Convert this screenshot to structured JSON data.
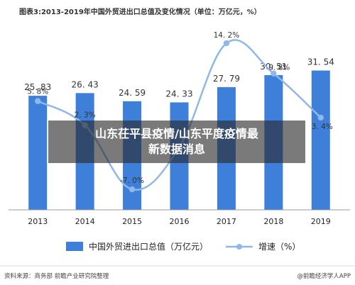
{
  "chart_data": {
    "type": "bar",
    "title": "图表3:2013-2019年中国外贸进出口总值及变化情况（单位：万亿元，%）",
    "categories": [
      "2013",
      "2014",
      "2015",
      "2016",
      "2017",
      "2018",
      "2019"
    ],
    "series": [
      {
        "name": "中国外贸进出口总值（万亿元）",
        "type": "bar",
        "color": "#3D7FD9",
        "values": [
          25.83,
          26.43,
          24.59,
          24.33,
          27.79,
          30.51,
          31.54
        ],
        "labels": [
          "25. 83",
          "26. 43",
          "24. 59",
          "24. 33",
          "27. 79",
          "30. 51",
          "31. 54"
        ]
      },
      {
        "name": "增速（%）",
        "type": "line",
        "color": "#8FB8E8",
        "values": [
          5.8,
          2.3,
          -7.0,
          -0.9,
          14.2,
          9.8,
          3.4
        ],
        "labels": [
          "5. 8%",
          "2. 3%",
          "-7. 0%",
          "",
          "14. 2%",
          "9. 8%",
          "3. 4%"
        ]
      }
    ],
    "ylim_bar": [
      0,
      40
    ],
    "ylim_rate": [
      -10,
      15
    ],
    "grid": false,
    "legend_position": "bottom"
  },
  "overlay": {
    "text": "山东茌平县疫情/山东平度疫情最新数据消息"
  },
  "source": {
    "left": "资料来源：商务部 前瞻产业研究院整理",
    "right": "@前瞻经济学人APP"
  },
  "colors": {
    "bar": "#3D7FD9",
    "line": "#8FB8E8",
    "axis": "#999999"
  }
}
